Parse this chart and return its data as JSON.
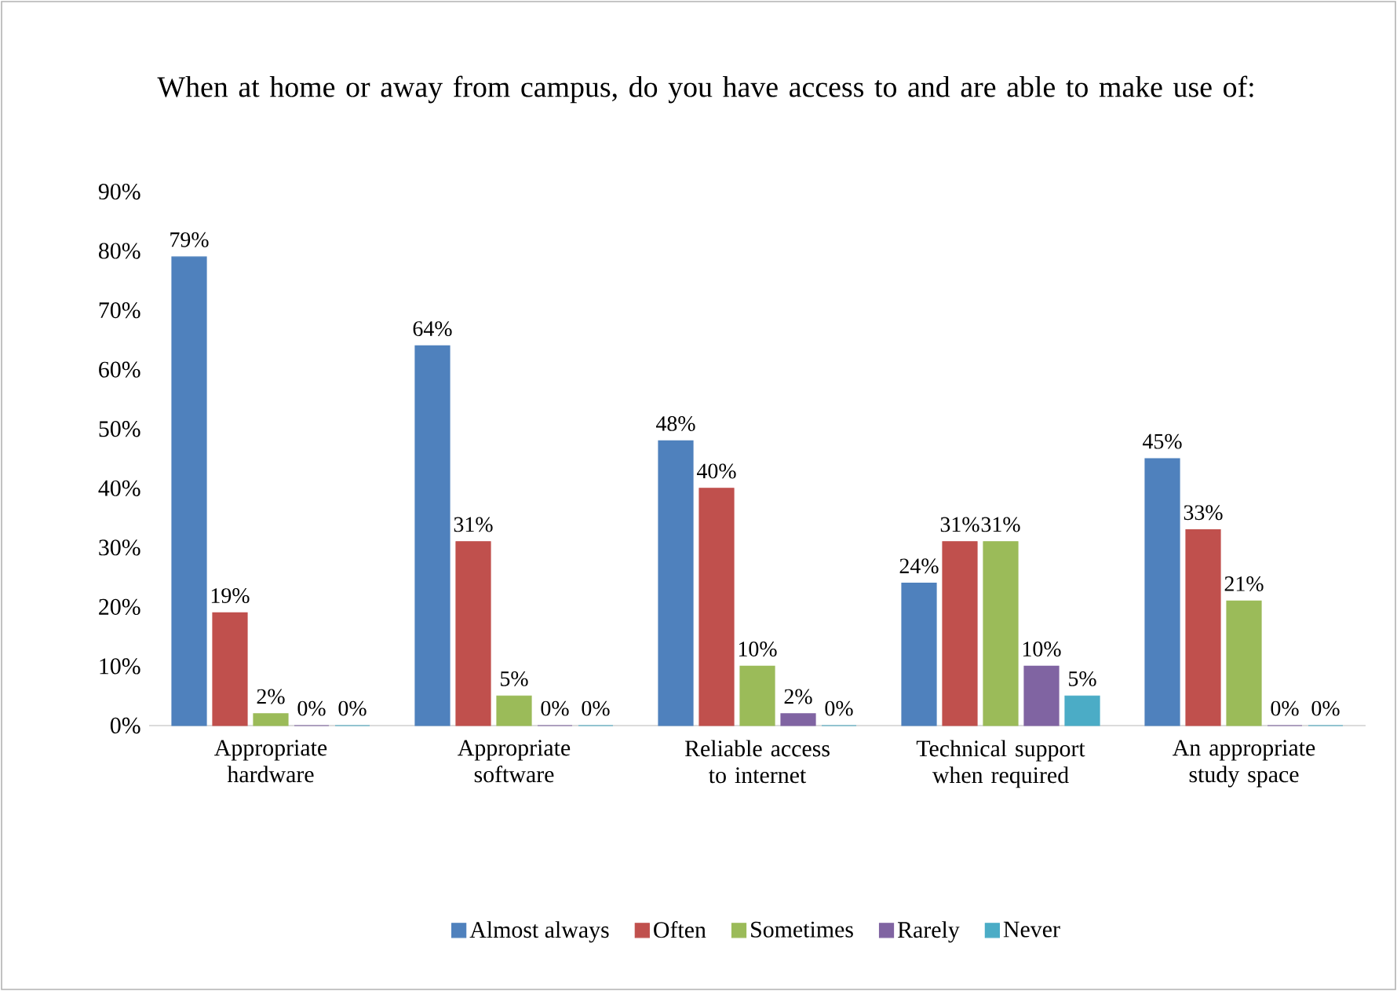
{
  "chart_data": {
    "type": "bar",
    "title": "When at home or away from campus, do you have access to and are able to make use of:",
    "categories": [
      "Appropriate hardware",
      "Appropriate software",
      "Reliable access to internet",
      "Technical support when required",
      "An appropriate study space"
    ],
    "series": [
      {
        "name": "Almost always",
        "color": "#4f81bd",
        "values": [
          79,
          64,
          48,
          24,
          45
        ],
        "value_labels": [
          "79%",
          "64%",
          "48%",
          "24%",
          "45%"
        ]
      },
      {
        "name": "Often",
        "color": "#c0504d",
        "values": [
          19,
          31,
          40,
          31,
          33
        ],
        "value_labels": [
          "19%",
          "31%",
          "40%",
          "31%",
          "33%"
        ]
      },
      {
        "name": "Sometimes",
        "color": "#9bbb59",
        "values": [
          2,
          5,
          10,
          31,
          21
        ],
        "value_labels": [
          "2%",
          "5%",
          "10%",
          "31%",
          "21%"
        ]
      },
      {
        "name": "Rarely",
        "color": "#8064a2",
        "values": [
          0,
          0,
          2,
          10,
          0
        ],
        "value_labels": [
          "0%",
          "0%",
          "2%",
          "10%",
          "0%"
        ]
      },
      {
        "name": "Never",
        "color": "#4bacc6",
        "values": [
          0,
          0,
          0,
          5,
          0
        ],
        "value_labels": [
          "0%",
          "0%",
          "0%",
          "5%",
          "0%"
        ]
      }
    ],
    "ylim": [
      0,
      90
    ],
    "yticks": [
      {
        "value": 0,
        "label": "0%"
      },
      {
        "value": 10,
        "label": "10%"
      },
      {
        "value": 20,
        "label": "20%"
      },
      {
        "value": 30,
        "label": "30%"
      },
      {
        "value": 40,
        "label": "40%"
      },
      {
        "value": 50,
        "label": "50%"
      },
      {
        "value": 60,
        "label": "60%"
      },
      {
        "value": 70,
        "label": "70%"
      },
      {
        "value": 80,
        "label": "80%"
      },
      {
        "value": 90,
        "label": "90%"
      }
    ],
    "grid": false,
    "legend": "bottom"
  }
}
